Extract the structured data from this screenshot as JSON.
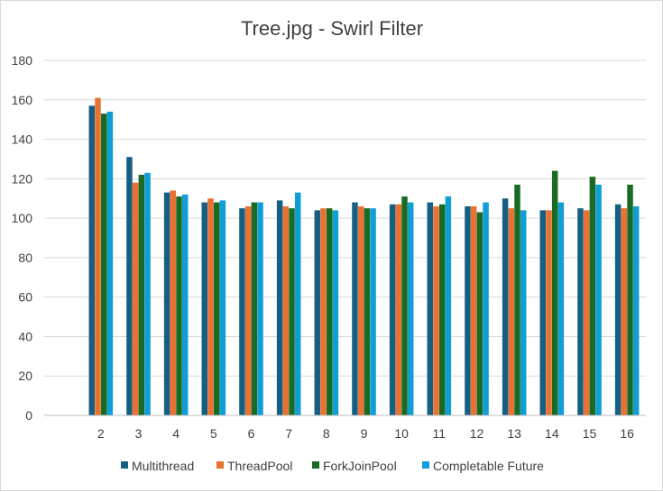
{
  "chart_data": {
    "type": "bar",
    "title": "Tree.jpg - Swirl Filter",
    "xlabel": "",
    "ylabel": "",
    "categories": [
      "2",
      "3",
      "4",
      "5",
      "6",
      "7",
      "8",
      "9",
      "10",
      "11",
      "12",
      "13",
      "14",
      "15",
      "16"
    ],
    "ylim": [
      0,
      180
    ],
    "yticks": [
      0,
      20,
      40,
      60,
      80,
      100,
      120,
      140,
      160,
      180
    ],
    "grid": true,
    "legend_position": "bottom",
    "series": [
      {
        "name": "Multithread",
        "color": "#156082",
        "values": [
          157,
          131,
          113,
          108,
          105,
          109,
          104,
          108,
          107,
          108,
          106,
          110,
          104,
          105,
          107
        ]
      },
      {
        "name": "ThreadPool",
        "color": "#E97132",
        "values": [
          161,
          118,
          114,
          110,
          106,
          106,
          105,
          106,
          107,
          106,
          106,
          105,
          104,
          104,
          105
        ]
      },
      {
        "name": "ForkJoinPool",
        "color": "#196B24",
        "values": [
          153,
          122,
          111,
          108,
          108,
          105,
          105,
          105,
          111,
          107,
          103,
          117,
          124,
          121,
          117
        ]
      },
      {
        "name": "Completable Future",
        "color": "#0F9ED5",
        "values": [
          154,
          123,
          112,
          109,
          108,
          113,
          104,
          105,
          108,
          111,
          108,
          104,
          108,
          117,
          106
        ]
      }
    ]
  }
}
